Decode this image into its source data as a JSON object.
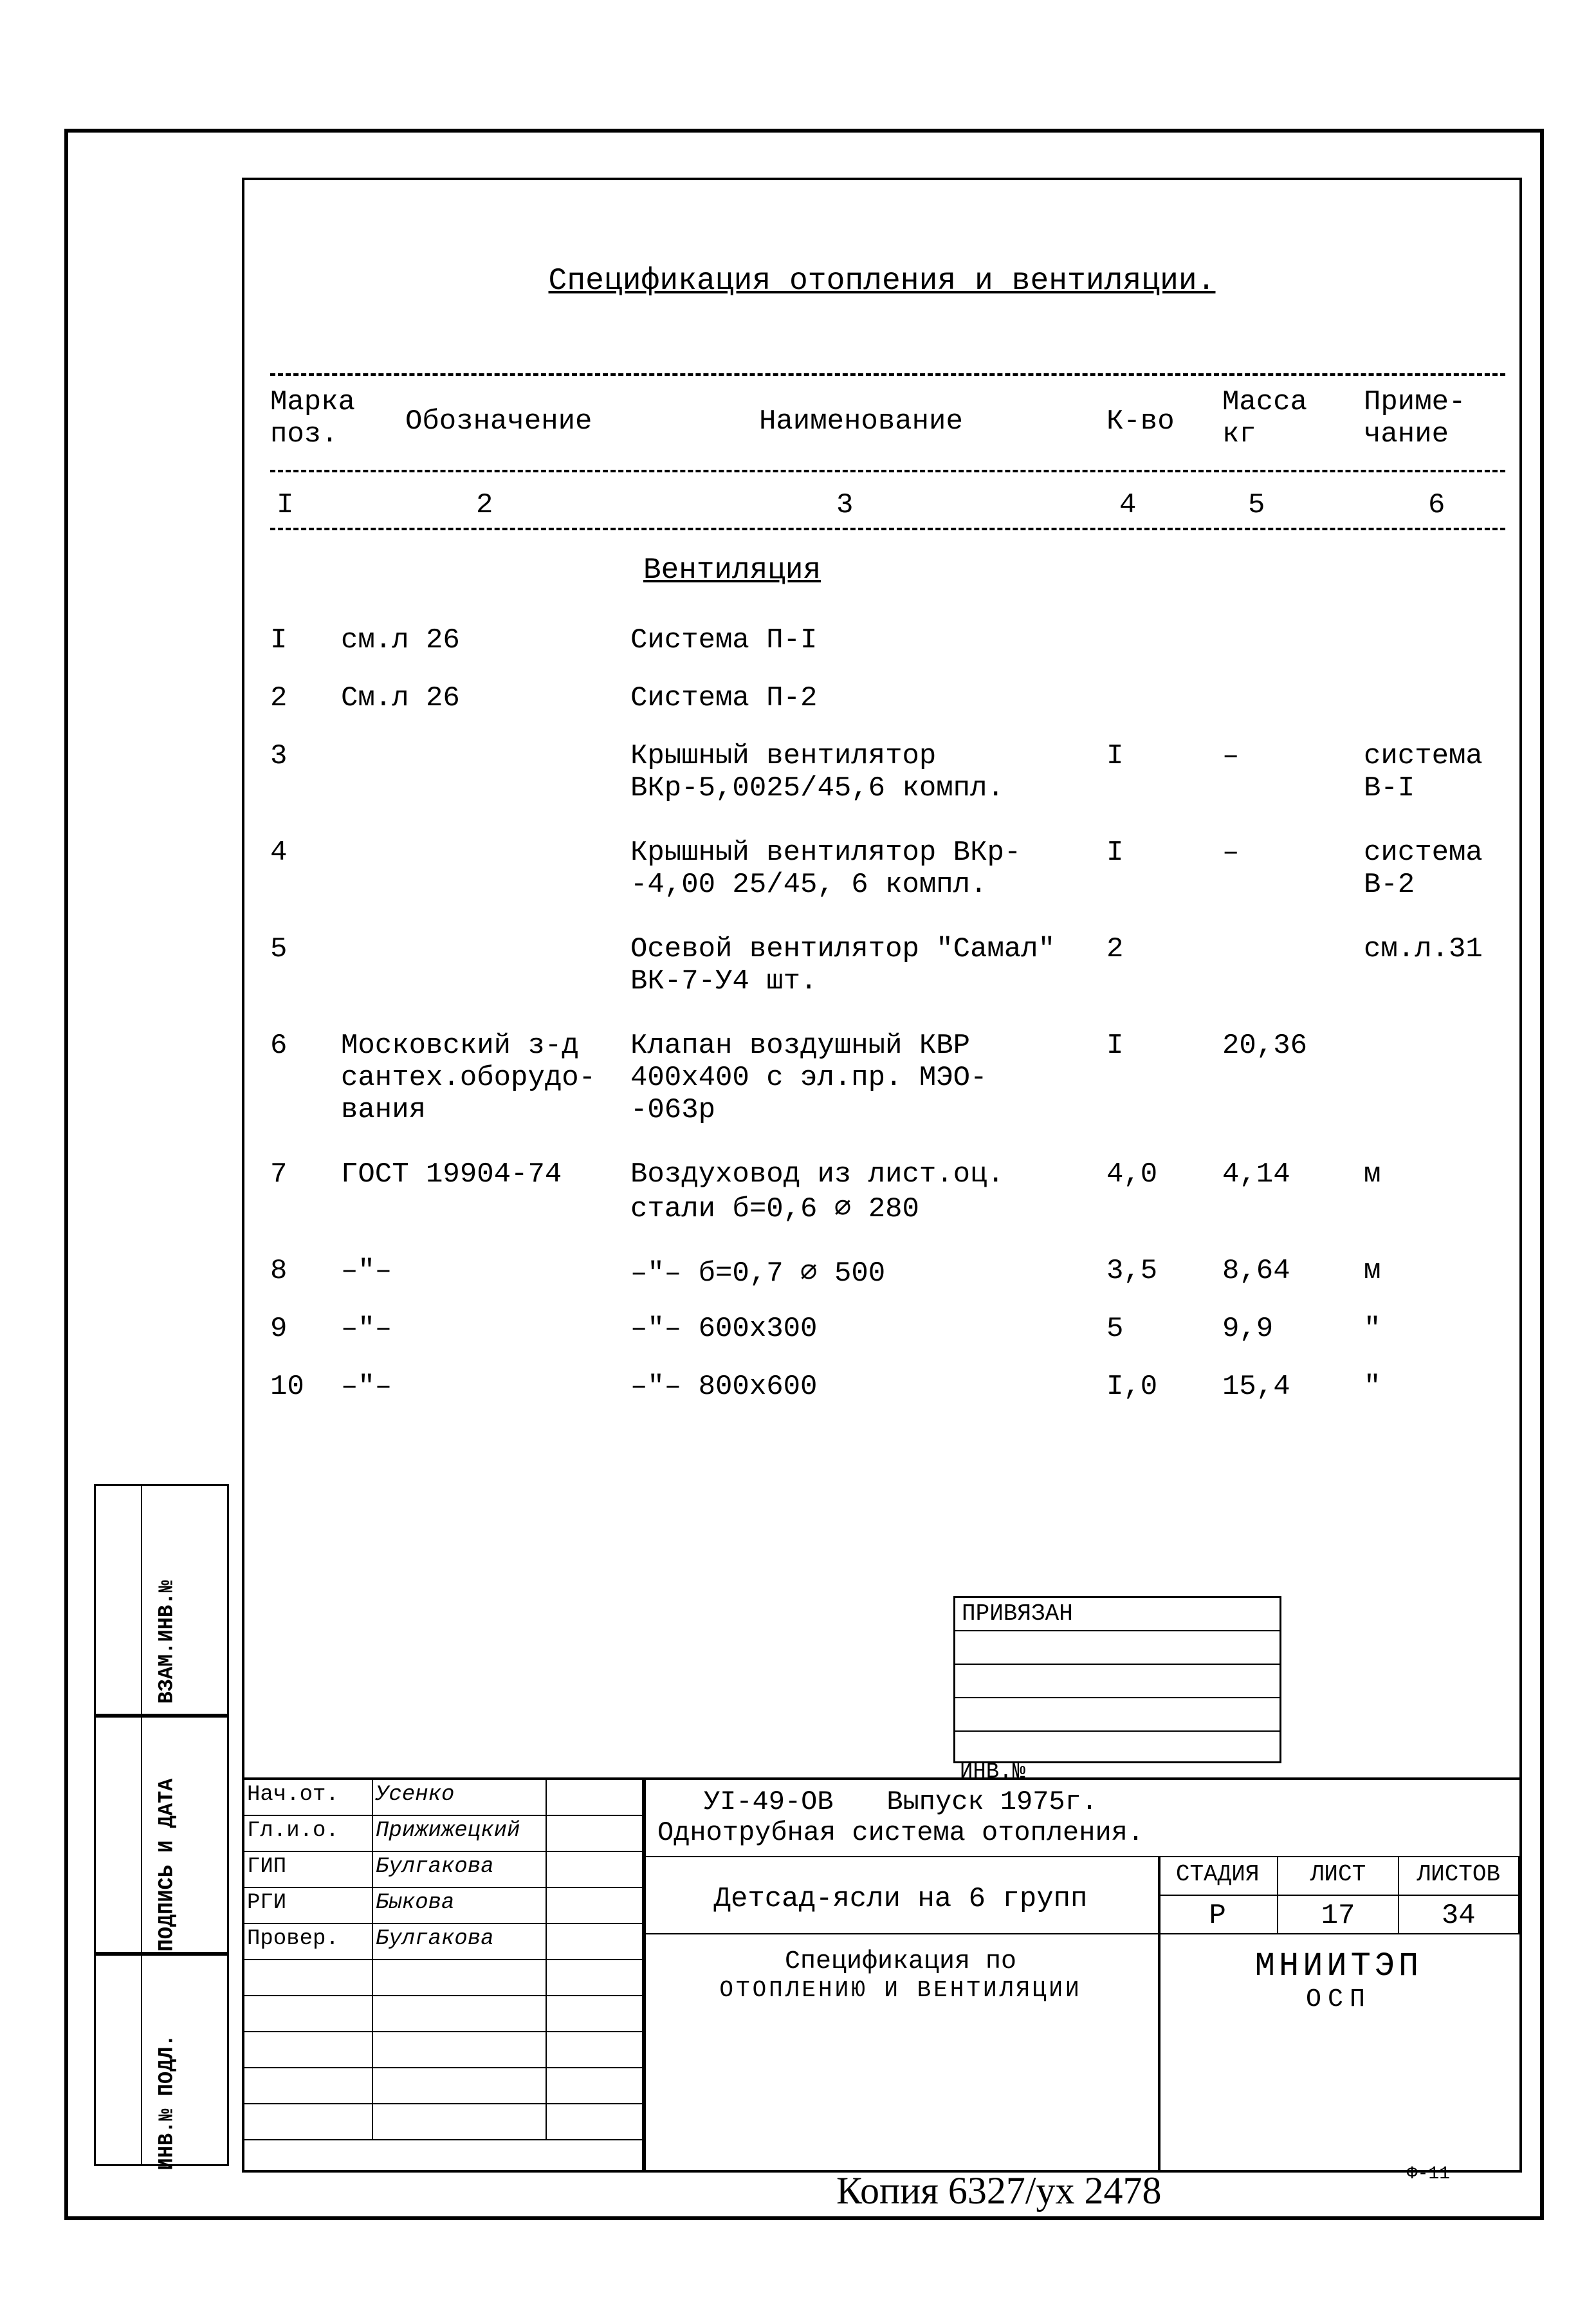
{
  "title": "Спецификация отопления и вентиляции.",
  "columns": {
    "mark": "Марка\nпоз.",
    "obozn": "Обозначение",
    "naim": "Наименование",
    "kvo": "К-во",
    "mass": "Масса\nкг",
    "prim": "Приме-\nчание",
    "nums": [
      "I",
      "2",
      "3",
      "4",
      "5",
      "6"
    ]
  },
  "section": "Вентиляция",
  "rows": [
    {
      "mark": "I",
      "obozn": "см.л 26",
      "naim": "Система П-I",
      "kvo": "",
      "mass": "",
      "prim": ""
    },
    {
      "mark": "2",
      "obozn": "См.л 26",
      "naim": "Система П-2",
      "kvo": "",
      "mass": "",
      "prim": ""
    },
    {
      "mark": "3",
      "obozn": "",
      "naim": "Крышный вентилятор\nВКр-5,0025/45,6 компл.",
      "kvo": "I",
      "mass": "–",
      "prim": "система\nВ-I"
    },
    {
      "mark": "4",
      "obozn": "",
      "naim": "Крышный вентилятор ВКр-\n-4,00 25/45, 6 компл.",
      "kvo": "I",
      "mass": "–",
      "prim": "система\nВ-2"
    },
    {
      "mark": "5",
      "obozn": "",
      "naim": "Осевой вентилятор \"Самал\"\nВК-7-У4    шт.",
      "kvo": "2",
      "mass": "",
      "prim": "см.л.31"
    },
    {
      "mark": "6",
      "obozn": "Московский з-д\nсантех.оборудо-\nвания",
      "naim": "Клапан воздушный КВР\n400х400 с эл.пр. МЭО-\n-063р",
      "kvo": "I",
      "mass": "20,36",
      "prim": ""
    },
    {
      "mark": "7",
      "obozn": "ГОСТ 19904-74",
      "naim": "Воздуховод из лист.оц.\nстали б=0,6 ⌀ 280",
      "kvo": "4,0",
      "mass": "4,14",
      "prim": "м"
    },
    {
      "mark": "8",
      "obozn": "–\"–",
      "naim": "–\"– б=0,7 ⌀ 500",
      "kvo": "3,5",
      "mass": "8,64",
      "prim": "м"
    },
    {
      "mark": "9",
      "obozn": "–\"–",
      "naim": "–\"–      600х300",
      "kvo": "5",
      "mass": "9,9",
      "prim": "\""
    },
    {
      "mark": "10",
      "obozn": "–\"–",
      "naim": "–\"–      800х600",
      "kvo": "I,0",
      "mass": "15,4",
      "prim": "\""
    }
  ],
  "privyazan_label": "ПРИВЯЗАН",
  "inv_label": "ИНВ.№",
  "left_labels": {
    "vzam": "ВЗАМ.ИНВ.№",
    "podpis": "ПОДПИСЬ И ДАТА",
    "invpodl": "ИНВ.№ ПОДЛ."
  },
  "signatures": [
    {
      "role": "Нач.от.",
      "name": "Усенко"
    },
    {
      "role": "Гл.и.о.",
      "name": "Прижижецкий"
    },
    {
      "role": "ГИП",
      "name": "Булгакова"
    },
    {
      "role": "РГИ",
      "name": "Быкова"
    },
    {
      "role": "Провер.",
      "name": "Булгакова"
    }
  ],
  "doc": {
    "code": "УI-49-ОВ",
    "issue": "Выпуск 1975г.",
    "system": "Однотрубная система отопления.",
    "object": "Детсад-ясли на 6 групп",
    "spec_title": "Спецификация по",
    "spec_sub": "ОТОПЛЕНИЮ  И  ВЕНТИЛЯЦИИ",
    "stadia_h": "СТАДИЯ",
    "list_h": "ЛИСТ",
    "listov_h": "ЛИСТОВ",
    "stadia": "Р",
    "list": "17",
    "listov": "34",
    "org": "МНИИТЭП",
    "org2": "ОСП"
  },
  "handnote": "Копия 6327/ух 2478",
  "form": "Ф-11"
}
